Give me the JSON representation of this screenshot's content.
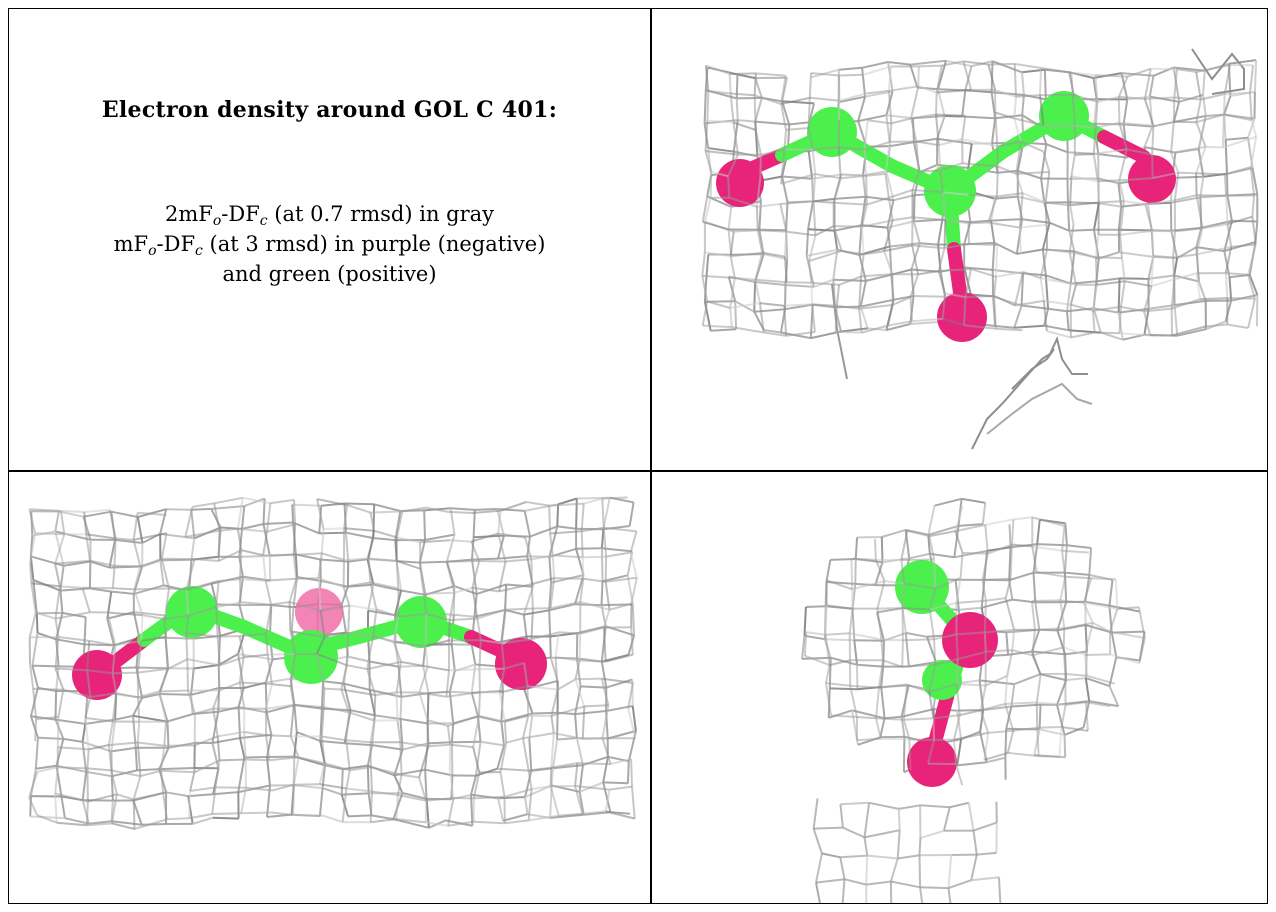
{
  "title": "Electron density around GOL C 401:",
  "legend": {
    "line1": {
      "a": "2mF",
      "a_sub": "o",
      "b": "-DF",
      "b_sub": "c",
      "c": " (at 0.7 rmsd) in gray"
    },
    "line2": {
      "a": "mF",
      "a_sub": "o",
      "b": "-DF",
      "b_sub": "c",
      "c": " (at 3 rmsd) in purple (negative)"
    },
    "line3": "and green (positive)"
  },
  "colors": {
    "mesh": "#9a9a9a",
    "carbon": "#4cf04c",
    "oxygen": "#e8247a",
    "border": "#000000"
  },
  "panels": [
    {
      "name": "view-top-right",
      "content": "glycerol-ball-and-stick-with-mesh"
    },
    {
      "name": "view-bottom-left",
      "content": "glycerol-ball-and-stick-with-mesh"
    },
    {
      "name": "view-bottom-right",
      "content": "glycerol-ball-and-stick-with-mesh"
    }
  ]
}
